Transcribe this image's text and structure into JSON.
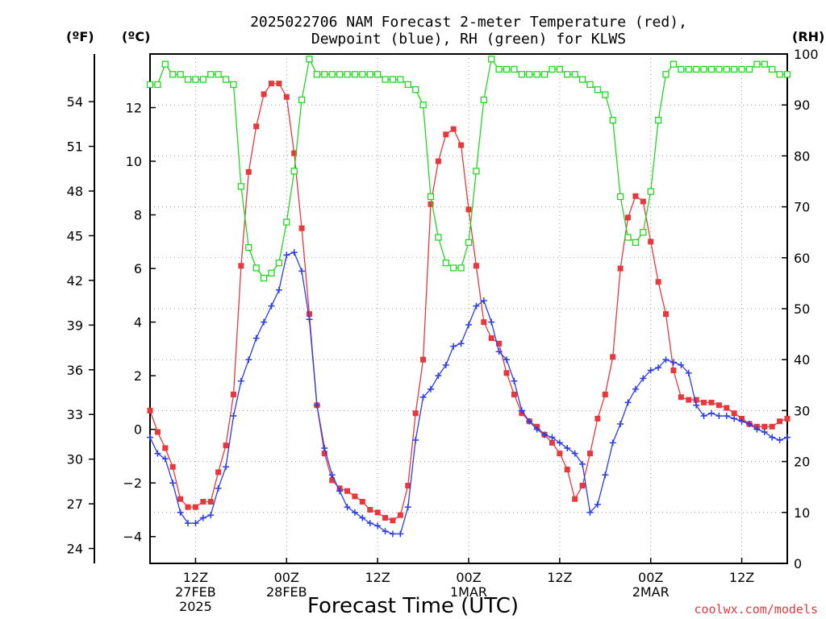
{
  "chart_data": {
    "type": "line",
    "title_lines": [
      "2025022706 NAM Forecast 2-meter Temperature (red),",
      "Dewpoint (blue), RH (green) for KLWS"
    ],
    "xlabel": "Forecast Time (UTC)",
    "unit_labels": {
      "fahrenheit": "(ºF)",
      "celsius": "(ºC)",
      "rh": "(RH)"
    },
    "credit": "coolwx.com/models",
    "x_unit": "forecast hour",
    "x_range": [
      0,
      84
    ],
    "x_ticks": [
      {
        "hour": 6,
        "lines": [
          "12Z",
          "27FEB",
          "2025"
        ]
      },
      {
        "hour": 18,
        "lines": [
          "00Z",
          "28FEB"
        ]
      },
      {
        "hour": 30,
        "lines": [
          "12Z"
        ]
      },
      {
        "hour": 42,
        "lines": [
          "00Z",
          "1MAR"
        ]
      },
      {
        "hour": 54,
        "lines": [
          "12Z"
        ]
      },
      {
        "hour": 66,
        "lines": [
          "00Z",
          "2MAR"
        ]
      },
      {
        "hour": 78,
        "lines": [
          "12Z"
        ]
      }
    ],
    "y_left_c": {
      "range": [
        -5,
        14
      ],
      "ticks": [
        "−4",
        "−2",
        "0",
        "2",
        "4",
        "6",
        "8",
        "10",
        "12"
      ],
      "tick_values": [
        -4,
        -2,
        0,
        2,
        4,
        6,
        8,
        10,
        12
      ]
    },
    "y_left_f": {
      "ticks": [
        "24",
        "27",
        "30",
        "33",
        "36",
        "39",
        "42",
        "45",
        "48",
        "51",
        "54"
      ],
      "tick_values": [
        24,
        27,
        30,
        33,
        36,
        39,
        42,
        45,
        48,
        51,
        54
      ]
    },
    "y_right_rh": {
      "range": [
        0,
        100
      ],
      "ticks": [
        "0",
        "10",
        "20",
        "30",
        "40",
        "50",
        "60",
        "70",
        "80",
        "90",
        "100"
      ],
      "tick_values": [
        0,
        10,
        20,
        30,
        40,
        50,
        60,
        70,
        80,
        90,
        100
      ]
    },
    "grid": true,
    "series": [
      {
        "name": "Temperature",
        "color": "#e8383c",
        "marker": "filled-square",
        "axis": "celsius",
        "x": [
          0,
          1,
          2,
          3,
          4,
          5,
          6,
          7,
          8,
          9,
          10,
          11,
          12,
          13,
          14,
          15,
          16,
          17,
          18,
          19,
          20,
          21,
          22,
          23,
          24,
          25,
          26,
          27,
          28,
          29,
          30,
          31,
          32,
          33,
          34,
          35,
          36,
          37,
          38,
          39,
          40,
          41,
          42,
          43,
          44,
          45,
          46,
          47,
          48,
          49,
          50,
          51,
          52,
          53,
          54,
          55,
          56,
          57,
          58,
          59,
          60,
          61,
          62,
          63,
          64,
          65,
          66,
          67,
          68,
          69,
          70,
          71,
          72,
          73,
          74,
          75,
          76,
          77,
          78,
          79,
          80,
          81,
          82,
          83,
          84
        ],
        "values": [
          0.7,
          -0.1,
          -0.7,
          -1.4,
          -2.6,
          -2.9,
          -2.9,
          -2.7,
          -2.7,
          -1.6,
          -0.6,
          1.3,
          6.1,
          9.6,
          11.3,
          12.5,
          12.9,
          12.9,
          12.4,
          10.3,
          7.5,
          4.3,
          0.9,
          -0.9,
          -1.9,
          -2.2,
          -2.3,
          -2.5,
          -2.7,
          -3.0,
          -3.1,
          -3.3,
          -3.4,
          -3.2,
          -2.1,
          0.6,
          2.6,
          8.4,
          10.0,
          11.0,
          11.2,
          10.6,
          8.2,
          6.1,
          4.0,
          3.4,
          3.2,
          2.1,
          1.3,
          0.6,
          0.3,
          0.1,
          -0.2,
          -0.5,
          -0.9,
          -1.5,
          -2.6,
          -2.1,
          -0.9,
          0.4,
          1.3,
          2.7,
          6.0,
          7.9,
          8.7,
          8.5,
          7.0,
          5.5,
          4.3,
          2.2,
          1.2,
          1.1,
          1.1,
          1.0,
          1.0,
          0.9,
          0.8,
          0.6,
          0.4,
          0.2,
          0.1,
          0.1,
          0.1,
          0.3,
          0.4
        ]
      },
      {
        "name": "Dewpoint",
        "color": "#2b3de6",
        "marker": "plus",
        "axis": "celsius",
        "x": [
          0,
          1,
          2,
          3,
          4,
          5,
          6,
          7,
          8,
          9,
          10,
          11,
          12,
          13,
          14,
          15,
          16,
          17,
          18,
          19,
          20,
          21,
          22,
          23,
          24,
          25,
          26,
          27,
          28,
          29,
          30,
          31,
          32,
          33,
          34,
          35,
          36,
          37,
          38,
          39,
          40,
          41,
          42,
          43,
          44,
          45,
          46,
          47,
          48,
          49,
          50,
          51,
          52,
          53,
          54,
          55,
          56,
          57,
          58,
          59,
          60,
          61,
          62,
          63,
          64,
          65,
          66,
          67,
          68,
          69,
          70,
          71,
          72,
          73,
          74,
          75,
          76,
          77,
          78,
          79,
          80,
          81,
          82,
          83,
          84
        ],
        "values": [
          -0.3,
          -0.9,
          -1.1,
          -2.0,
          -3.1,
          -3.5,
          -3.5,
          -3.3,
          -3.2,
          -2.2,
          -1.4,
          0.5,
          1.8,
          2.6,
          3.4,
          4.0,
          4.6,
          5.2,
          6.5,
          6.6,
          5.9,
          4.1,
          0.9,
          -0.7,
          -1.7,
          -2.3,
          -2.9,
          -3.1,
          -3.3,
          -3.5,
          -3.6,
          -3.8,
          -3.9,
          -3.9,
          -2.9,
          -0.4,
          1.2,
          1.5,
          2.0,
          2.4,
          3.1,
          3.2,
          3.9,
          4.6,
          4.8,
          4.0,
          2.9,
          2.6,
          1.8,
          0.7,
          0.3,
          0.0,
          -0.2,
          -0.3,
          -0.5,
          -0.7,
          -0.9,
          -1.3,
          -3.1,
          -2.8,
          -1.7,
          -0.5,
          0.2,
          1.0,
          1.5,
          1.9,
          2.2,
          2.3,
          2.6,
          2.5,
          2.4,
          2.1,
          0.9,
          0.5,
          0.6,
          0.5,
          0.5,
          0.4,
          0.3,
          0.2,
          0.0,
          -0.1,
          -0.3,
          -0.4,
          -0.3
        ]
      },
      {
        "name": "RH",
        "color": "#21d821",
        "marker": "open-square",
        "axis": "rh",
        "x": [
          0,
          1,
          2,
          3,
          4,
          5,
          6,
          7,
          8,
          9,
          10,
          11,
          12,
          13,
          14,
          15,
          16,
          17,
          18,
          19,
          20,
          21,
          22,
          23,
          24,
          25,
          26,
          27,
          28,
          29,
          30,
          31,
          32,
          33,
          34,
          35,
          36,
          37,
          38,
          39,
          40,
          41,
          42,
          43,
          44,
          45,
          46,
          47,
          48,
          49,
          50,
          51,
          52,
          53,
          54,
          55,
          56,
          57,
          58,
          59,
          60,
          61,
          62,
          63,
          64,
          65,
          66,
          67,
          68,
          69,
          70,
          71,
          72,
          73,
          74,
          75,
          76,
          77,
          78,
          79,
          80,
          81,
          82,
          83,
          84
        ],
        "values": [
          94,
          94,
          98,
          96,
          96,
          95,
          95,
          95,
          96,
          96,
          95,
          94,
          74,
          62,
          58,
          56,
          57,
          59,
          67,
          77,
          91,
          99,
          96,
          96,
          96,
          96,
          96,
          96,
          96,
          96,
          96,
          95,
          95,
          95,
          94,
          93,
          90,
          72,
          64,
          59,
          58,
          58,
          63,
          77,
          91,
          99,
          97,
          97,
          97,
          96,
          96,
          96,
          96,
          97,
          97,
          96,
          96,
          95,
          94,
          93,
          92,
          87,
          72,
          64,
          63,
          65,
          73,
          87,
          96,
          98,
          97,
          97,
          97,
          97,
          97,
          97,
          97,
          97,
          97,
          97,
          98,
          98,
          97,
          96,
          96
        ]
      }
    ]
  }
}
